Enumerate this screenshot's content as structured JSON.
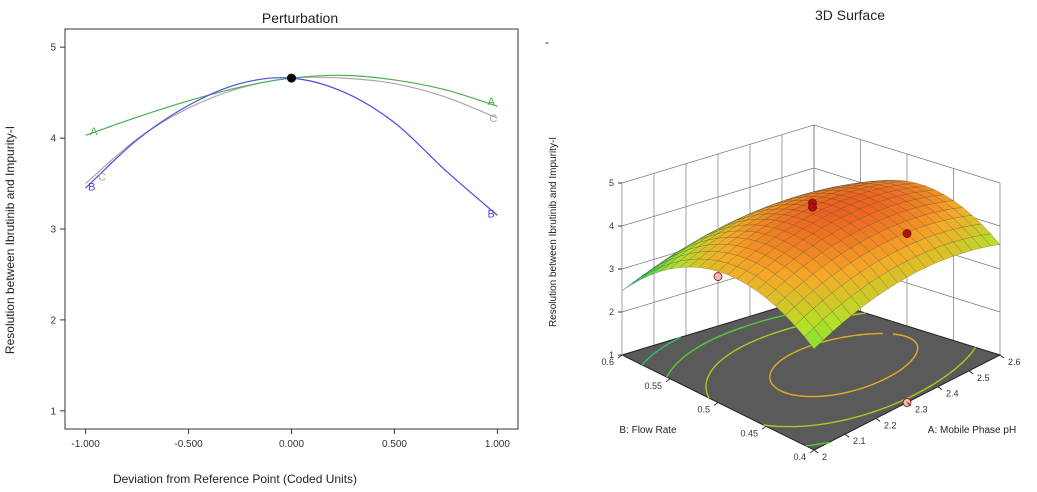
{
  "chart_data": [
    {
      "type": "line",
      "title": "Perturbation",
      "xlabel": "Deviation from Reference Point (Coded Units)",
      "ylabel": "Resolution between Ibrutinib and Impurity-I",
      "xlim": [
        -1.1,
        1.1
      ],
      "ylim": [
        0.8,
        5.2
      ],
      "x_ticks": [
        "-1.000",
        "-0.500",
        "0.000",
        "0.500",
        "1.000"
      ],
      "y_ticks": [
        "1",
        "2",
        "3",
        "4",
        "5"
      ],
      "reference_point": {
        "x": 0.0,
        "y": 4.66
      },
      "series": [
        {
          "name": "A",
          "color": "#4caf50",
          "x": [
            -1,
            -0.75,
            -0.5,
            -0.25,
            0,
            0.25,
            0.5,
            0.75,
            1
          ],
          "y": [
            4.03,
            4.23,
            4.41,
            4.56,
            4.66,
            4.69,
            4.64,
            4.53,
            4.35
          ]
        },
        {
          "name": "B",
          "color": "#4b4be8",
          "x": [
            -1,
            -0.75,
            -0.5,
            -0.25,
            0,
            0.25,
            0.5,
            0.75,
            1
          ],
          "y": [
            3.45,
            3.98,
            4.36,
            4.6,
            4.66,
            4.51,
            4.17,
            3.64,
            3.15
          ]
        },
        {
          "name": "C",
          "color": "#a8a8a8",
          "x": [
            -1,
            -0.75,
            -0.5,
            -0.25,
            0,
            0.25,
            0.5,
            0.75,
            1
          ],
          "y": [
            3.5,
            3.99,
            4.33,
            4.55,
            4.66,
            4.66,
            4.6,
            4.45,
            4.22
          ]
        }
      ],
      "end_labels": [
        {
          "series": "A",
          "text": "A",
          "x": -0.96,
          "y": 4.08,
          "anchor": "middle"
        },
        {
          "series": "C",
          "text": "C",
          "x": -0.92,
          "y": 3.58,
          "anchor": "middle"
        },
        {
          "series": "B",
          "text": "B",
          "x": -0.97,
          "y": 3.47,
          "anchor": "middle"
        },
        {
          "series": "A",
          "text": "A",
          "x": 0.97,
          "y": 4.41,
          "anchor": "middle"
        },
        {
          "series": "C",
          "text": "C",
          "x": 0.98,
          "y": 4.22,
          "anchor": "middle"
        },
        {
          "series": "B",
          "text": "B",
          "x": 0.97,
          "y": 3.17,
          "anchor": "middle"
        }
      ]
    },
    {
      "type": "surface",
      "title": "3D Surface",
      "xlabel": "A: Mobile Phase pH",
      "ylabel": "B: Flow Rate",
      "zlabel": "Resolution between Ibrutinib and Impurity-I",
      "x_range": [
        2,
        2.6
      ],
      "y_range": [
        0.4,
        0.6
      ],
      "z_range": [
        1,
        5
      ],
      "x_ticks": [
        "2",
        "2.1",
        "2.2",
        "2.3",
        "2.4",
        "2.5",
        "2.6"
      ],
      "y_ticks": [
        "0.4",
        "0.45",
        "0.5",
        "0.55",
        "0.6"
      ],
      "z_ticks": [
        "1",
        "2",
        "3",
        "4",
        "5"
      ],
      "design_points": [
        {
          "x": 2.3,
          "y": 0.5,
          "z": 4.75,
          "above_surface": true
        },
        {
          "x": 2.3,
          "y": 0.5,
          "z": 4.65,
          "above_surface": true
        },
        {
          "x": 2.6,
          "y": 0.5,
          "z": 3.15,
          "above_surface": true
        },
        {
          "x": 2.3,
          "y": 0.6,
          "z": 2.15,
          "above_surface": false
        },
        {
          "x": 2.3,
          "y": 0.4,
          "z": 1.0,
          "above_surface": false
        }
      ],
      "contour_levels": [
        2.5,
        3.0,
        3.5,
        4.0,
        4.5
      ]
    }
  ]
}
